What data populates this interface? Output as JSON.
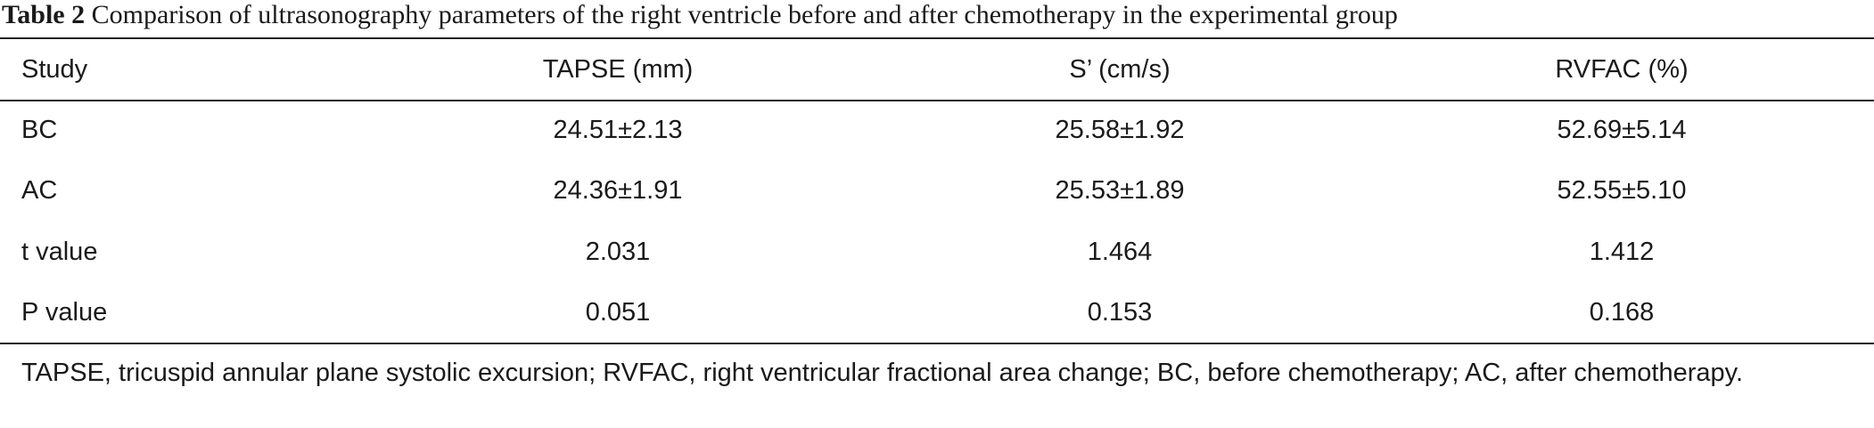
{
  "title": {
    "label": "Table 2",
    "text": "Comparison of ultrasonography parameters of the right ventricle before and after chemotherapy in the experimental group"
  },
  "table": {
    "header": [
      "Study",
      "TAPSE (mm)",
      "S’ (cm/s)",
      "RVFAC (%)"
    ],
    "rows": [
      [
        "BC",
        "24.51±2.13",
        "25.58±1.92",
        "52.69±5.14"
      ],
      [
        "AC",
        "24.36±1.91",
        "25.53±1.89",
        "52.55±5.10"
      ],
      [
        "t value",
        "2.031",
        "1.464",
        "1.412"
      ],
      [
        "P value",
        "0.051",
        "0.153",
        "0.168"
      ]
    ]
  },
  "footnote": "TAPSE, tricuspid annular plane systolic excursion; RVFAC, right ventricular fractional area change; BC, before chemotherapy; AC, after chemotherapy."
}
